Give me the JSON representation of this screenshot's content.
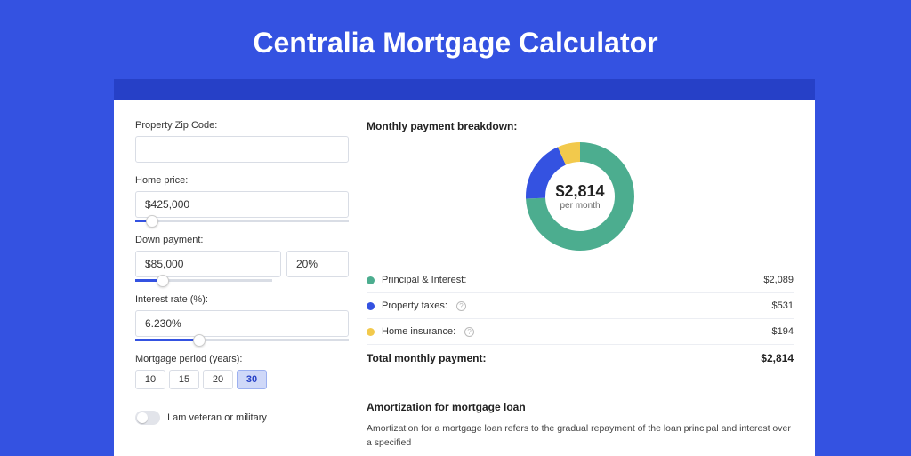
{
  "title": "Centralia Mortgage Calculator",
  "colors": {
    "page_bg": "#3452e1",
    "accent_bar": "#2640c7",
    "card_bg": "#ffffff",
    "input_border": "#d9dde5",
    "slider_fill": "#3452e1",
    "slider_track": "#d9dde5"
  },
  "form": {
    "zip": {
      "label": "Property Zip Code:",
      "value": ""
    },
    "home_price": {
      "label": "Home price:",
      "value": "$425,000",
      "slider_pct": 8
    },
    "down_payment": {
      "label": "Down payment:",
      "amount": "$85,000",
      "percent": "20%",
      "slider_pct": 20
    },
    "interest_rate": {
      "label": "Interest rate (%):",
      "value": "6.230%",
      "slider_pct": 30
    },
    "period": {
      "label": "Mortgage period (years):",
      "options": [
        "10",
        "15",
        "20",
        "30"
      ],
      "selected": "30"
    },
    "veteran": {
      "label": "I am veteran or military",
      "checked": false
    }
  },
  "breakdown": {
    "title": "Monthly payment breakdown:",
    "donut": {
      "amount": "$2,814",
      "sub": "per month",
      "radius": 50,
      "stroke": 22,
      "segments": [
        {
          "label": "Principal & Interest:",
          "value": "$2,089",
          "color": "#4cad8f",
          "fraction": 0.742
        },
        {
          "label": "Property taxes:",
          "value": "$531",
          "color": "#3452e1",
          "fraction": 0.189,
          "info": true
        },
        {
          "label": "Home insurance:",
          "value": "$194",
          "color": "#f2c94c",
          "fraction": 0.069,
          "info": true
        }
      ]
    },
    "total": {
      "label": "Total monthly payment:",
      "value": "$2,814"
    }
  },
  "amortization": {
    "title": "Amortization for mortgage loan",
    "text": "Amortization for a mortgage loan refers to the gradual repayment of the loan principal and interest over a specified"
  }
}
